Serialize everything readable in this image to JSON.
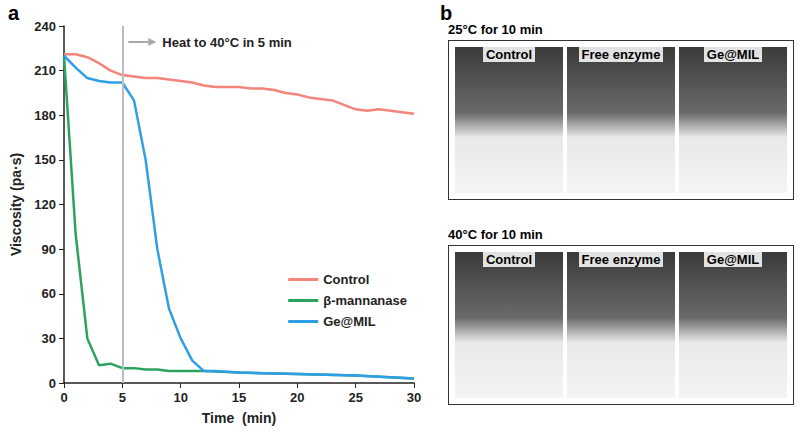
{
  "chart_data": {
    "type": "line",
    "panel_label": "a",
    "x_label": "Time  (min)",
    "y_label": "Viscosity (pa·s)",
    "xlim": [
      0,
      30
    ],
    "xticks": [
      0,
      5,
      10,
      15,
      20,
      25,
      30
    ],
    "ylim": [
      0,
      240
    ],
    "yticks": [
      0,
      30,
      60,
      90,
      120,
      150,
      180,
      210,
      240
    ],
    "grid": false,
    "legend": "lower right",
    "annotations": [
      {
        "text": "Heat to 40°C in 5 min",
        "x": 5
      }
    ],
    "series": [
      {
        "name": "Control",
        "color": "#f4847c",
        "x": [
          0,
          1,
          2,
          3,
          4,
          5,
          6,
          7,
          8,
          9,
          10,
          11,
          12,
          13,
          14,
          15,
          16,
          17,
          18,
          19,
          20,
          21,
          22,
          23,
          24,
          25,
          26,
          27,
          28,
          29,
          30
        ],
        "values": [
          221,
          221,
          219,
          215,
          210,
          207,
          206,
          205,
          205,
          204,
          203,
          202,
          200,
          199,
          199,
          199,
          198,
          198,
          197,
          195,
          194,
          192,
          191,
          190,
          187,
          184,
          183,
          184,
          183,
          182,
          181
        ]
      },
      {
        "name": "β-mannanase",
        "color": "#2ca25f",
        "x": [
          0,
          1,
          2,
          3,
          4,
          5,
          6,
          7,
          8,
          9,
          10,
          12,
          15,
          20,
          25,
          30
        ],
        "values": [
          220,
          100,
          30,
          12,
          13,
          10,
          10,
          9,
          9,
          8,
          8,
          8,
          7,
          6,
          5,
          3
        ]
      },
      {
        "name": "Ge@MIL",
        "color": "#2e9fe6",
        "x": [
          0,
          1,
          2,
          3,
          4,
          5,
          6,
          7,
          8,
          9,
          10,
          11,
          12,
          13,
          15,
          20,
          25,
          30
        ],
        "values": [
          220,
          212,
          205,
          203,
          202,
          202,
          190,
          150,
          90,
          50,
          30,
          15,
          8,
          8,
          7,
          6,
          5,
          3
        ]
      }
    ]
  },
  "photos": {
    "panel_label": "b",
    "groups": [
      {
        "title": "25°C for 10 min",
        "labels": [
          "Control",
          "Free enzyme",
          "Ge@MIL"
        ]
      },
      {
        "title": "40°C for 10 min",
        "labels": [
          "Control",
          "Free enzyme",
          "Ge@MIL"
        ]
      }
    ]
  }
}
